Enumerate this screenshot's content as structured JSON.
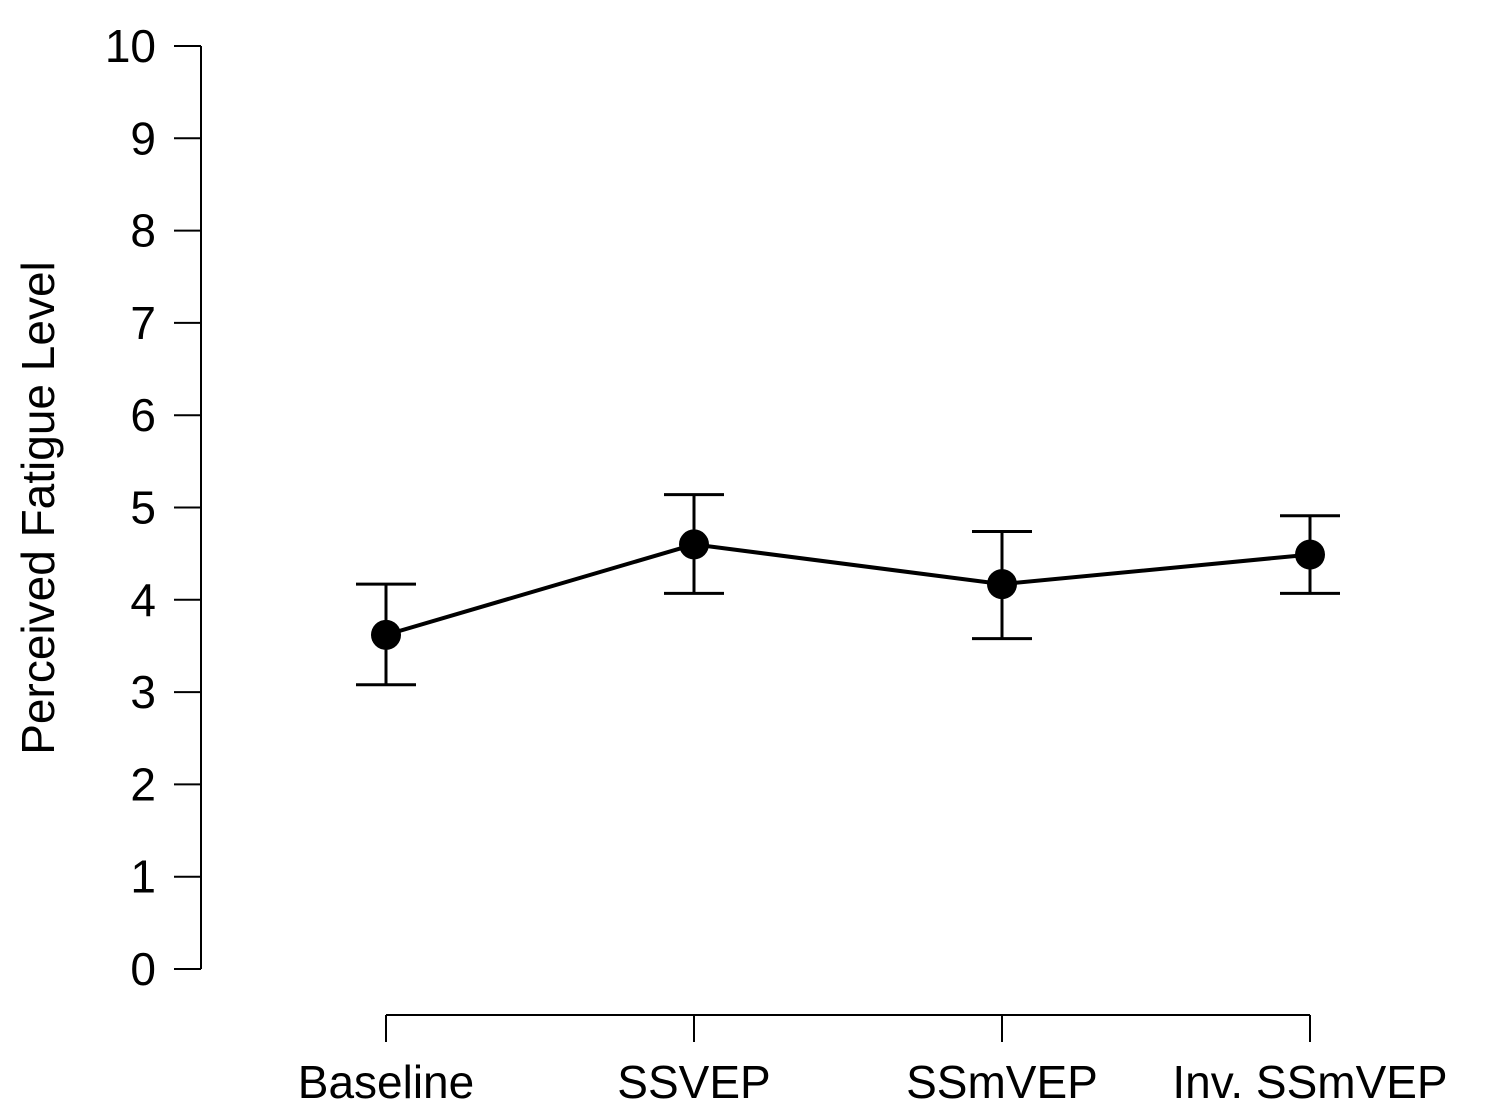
{
  "chart_data": {
    "type": "line",
    "title": "",
    "xlabel": "",
    "ylabel": "Perceived Fatigue Level",
    "ylim": [
      0,
      10
    ],
    "yticks": [
      "0",
      "1",
      "2",
      "3",
      "4",
      "5",
      "6",
      "7",
      "8",
      "9",
      "10"
    ],
    "categories": [
      "Baseline",
      "SSVEP",
      "SSmVEP",
      "Inv. SSmVEP"
    ],
    "series": [
      {
        "name": "Perceived Fatigue Level",
        "values": [
          3.62,
          4.6,
          4.17,
          4.49
        ],
        "err_low": [
          3.08,
          4.07,
          3.58,
          4.07
        ],
        "err_high": [
          4.17,
          5.14,
          4.74,
          4.91
        ]
      }
    ],
    "grid": false,
    "legend": "none"
  }
}
